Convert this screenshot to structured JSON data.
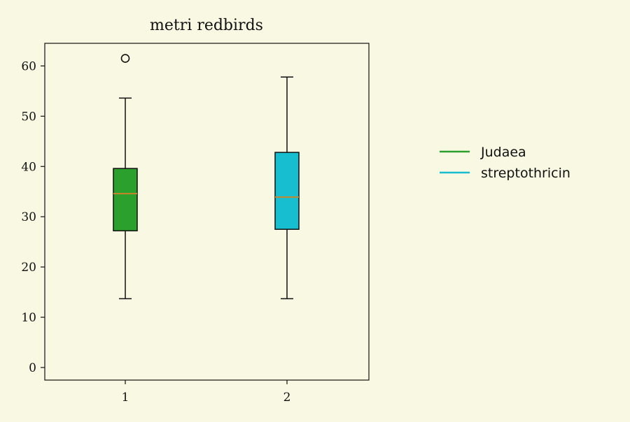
{
  "colors": {
    "background": "#f9f8e3",
    "axis": "#111111",
    "median": "#c8862a"
  },
  "chart_data": {
    "type": "box",
    "title": "metri redbirds",
    "xlabel": "",
    "ylabel": "",
    "categories": [
      "1",
      "2"
    ],
    "ylim": [
      -2.5,
      64.5
    ],
    "yticks": [
      0,
      10,
      20,
      30,
      40,
      50,
      60
    ],
    "grid": false,
    "legend_position": "right-outside",
    "series": [
      {
        "name": "Judaea",
        "color": "#2ca02c",
        "whisker_low": 13.7,
        "q1": 27.2,
        "median": 34.6,
        "q3": 39.6,
        "whisker_high": 53.6,
        "outliers": [
          61.5
        ]
      },
      {
        "name": "streptothricin",
        "color": "#17becf",
        "whisker_low": 13.7,
        "q1": 27.5,
        "median": 33.9,
        "q3": 42.8,
        "whisker_high": 57.8,
        "outliers": []
      }
    ]
  }
}
